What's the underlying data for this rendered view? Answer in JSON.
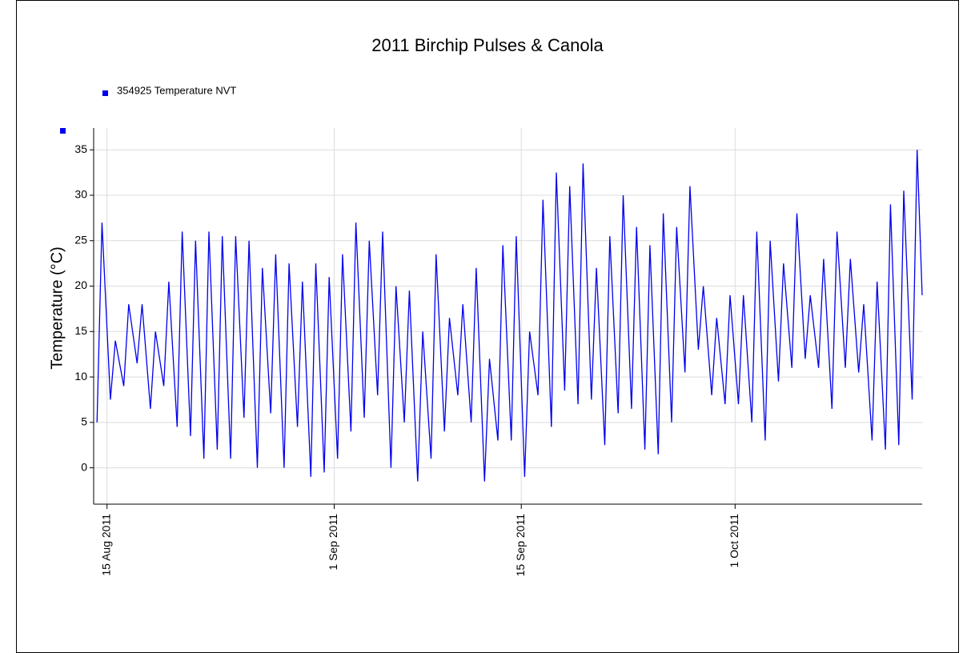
{
  "chart_data": {
    "type": "line",
    "title": "2011 Birchip Pulses & Canola",
    "y_label": "Temperature (°C)",
    "x": [
      "2011-08-14 06:00",
      "2011-08-14 15:00",
      "2011-08-15 06:00",
      "2011-08-15 15:00",
      "2011-08-16 06:00",
      "2011-08-16 15:00",
      "2011-08-17 06:00",
      "2011-08-17 15:00",
      "2011-08-18 06:00",
      "2011-08-18 15:00",
      "2011-08-19 06:00",
      "2011-08-19 15:00",
      "2011-08-20 06:00",
      "2011-08-20 15:00",
      "2011-08-21 06:00",
      "2011-08-21 15:00",
      "2011-08-22 06:00",
      "2011-08-22 15:00",
      "2011-08-23 06:00",
      "2011-08-23 15:00",
      "2011-08-24 06:00",
      "2011-08-24 15:00",
      "2011-08-25 06:00",
      "2011-08-25 15:00",
      "2011-08-26 06:00",
      "2011-08-26 15:00",
      "2011-08-27 06:00",
      "2011-08-27 15:00",
      "2011-08-28 06:00",
      "2011-08-28 15:00",
      "2011-08-29 06:00",
      "2011-08-29 15:00",
      "2011-08-30 06:00",
      "2011-08-30 15:00",
      "2011-08-31 06:00",
      "2011-08-31 15:00",
      "2011-09-01 06:00",
      "2011-09-01 15:00",
      "2011-09-02 06:00",
      "2011-09-02 15:00",
      "2011-09-03 06:00",
      "2011-09-03 15:00",
      "2011-09-04 06:00",
      "2011-09-04 15:00",
      "2011-09-05 06:00",
      "2011-09-05 15:00",
      "2011-09-06 06:00",
      "2011-09-06 15:00",
      "2011-09-07 06:00",
      "2011-09-07 15:00",
      "2011-09-08 06:00",
      "2011-09-08 15:00",
      "2011-09-09 06:00",
      "2011-09-09 15:00",
      "2011-09-10 06:00",
      "2011-09-10 15:00",
      "2011-09-11 06:00",
      "2011-09-11 15:00",
      "2011-09-12 06:00",
      "2011-09-12 15:00",
      "2011-09-13 06:00",
      "2011-09-13 15:00",
      "2011-09-14 06:00",
      "2011-09-14 15:00",
      "2011-09-15 06:00",
      "2011-09-15 15:00",
      "2011-09-16 06:00",
      "2011-09-16 15:00",
      "2011-09-17 06:00",
      "2011-09-17 15:00",
      "2011-09-18 06:00",
      "2011-09-18 15:00",
      "2011-09-19 06:00",
      "2011-09-19 15:00",
      "2011-09-20 06:00",
      "2011-09-20 15:00",
      "2011-09-21 06:00",
      "2011-09-21 15:00",
      "2011-09-22 06:00",
      "2011-09-22 15:00",
      "2011-09-23 06:00",
      "2011-09-23 15:00",
      "2011-09-24 06:00",
      "2011-09-24 15:00",
      "2011-09-25 06:00",
      "2011-09-25 15:00",
      "2011-09-26 06:00",
      "2011-09-26 15:00",
      "2011-09-27 06:00",
      "2011-09-27 15:00",
      "2011-09-28 06:00",
      "2011-09-28 15:00",
      "2011-09-29 06:00",
      "2011-09-29 15:00",
      "2011-09-30 06:00",
      "2011-09-30 15:00",
      "2011-10-01 06:00",
      "2011-10-01 15:00",
      "2011-10-02 06:00",
      "2011-10-02 15:00",
      "2011-10-03 06:00",
      "2011-10-03 15:00",
      "2011-10-04 06:00",
      "2011-10-04 15:00",
      "2011-10-05 06:00",
      "2011-10-05 15:00",
      "2011-10-06 06:00",
      "2011-10-06 15:00",
      "2011-10-07 06:00",
      "2011-10-07 15:00",
      "2011-10-08 06:00",
      "2011-10-08 15:00",
      "2011-10-09 06:00",
      "2011-10-09 15:00",
      "2011-10-10 06:00",
      "2011-10-10 15:00",
      "2011-10-11 06:00",
      "2011-10-11 15:00",
      "2011-10-12 06:00",
      "2011-10-12 15:00",
      "2011-10-13 06:00",
      "2011-10-13 15:00",
      "2011-10-14 06:00",
      "2011-10-14 15:00",
      "2011-10-15 00:00"
    ],
    "series": [
      {
        "name": "354925  Temperature NVT",
        "color": "#0000ee",
        "values": [
          5,
          27,
          7.5,
          14,
          9,
          18,
          11.5,
          18,
          6.5,
          15,
          9,
          20.5,
          4.5,
          26,
          3.5,
          25,
          1,
          26,
          2,
          25.5,
          1,
          25.5,
          5.5,
          25,
          0,
          22,
          6,
          23.5,
          0,
          22.5,
          4.5,
          20.5,
          -1,
          22.5,
          -0.5,
          21,
          1,
          23.5,
          4,
          27,
          5.5,
          25,
          8,
          26,
          0,
          20,
          5,
          19.5,
          -1.5,
          15,
          1,
          23.5,
          4,
          16.5,
          8,
          18,
          5,
          22,
          -1.5,
          12,
          3,
          24.5,
          3,
          25.5,
          -1,
          15,
          8,
          29.5,
          4.5,
          32.5,
          8.5,
          31,
          7,
          33.5,
          7.5,
          22,
          2.5,
          25.5,
          6,
          30,
          6.5,
          26.5,
          2,
          24.5,
          1.5,
          28,
          5,
          26.5,
          10.5,
          31,
          13,
          20,
          8,
          16.5,
          7,
          19,
          7,
          19,
          5,
          26,
          3,
          25,
          9.5,
          22.5,
          11,
          28,
          12,
          19,
          11,
          23,
          6.5,
          26,
          11,
          23,
          10.5,
          18,
          3,
          20.5,
          2,
          29,
          2.5,
          30.5,
          7.5,
          35,
          19
        ]
      }
    ],
    "xlim": [
      "2011-08-14 00:00",
      "2011-10-15 00:00"
    ],
    "xticks": [
      {
        "value": "2011-08-15 00:00",
        "label": "15 Aug 2011"
      },
      {
        "value": "2011-09-01 00:00",
        "label": "1 Sep 2011"
      },
      {
        "value": "2011-09-15 00:00",
        "label": "15 Sep 2011"
      },
      {
        "value": "2011-10-01 00:00",
        "label": "1 Oct 2011"
      }
    ],
    "ylim": [
      -4,
      37.4
    ],
    "yticks": [
      0,
      5,
      10,
      15,
      20,
      25,
      30,
      35
    ],
    "grid": true
  }
}
